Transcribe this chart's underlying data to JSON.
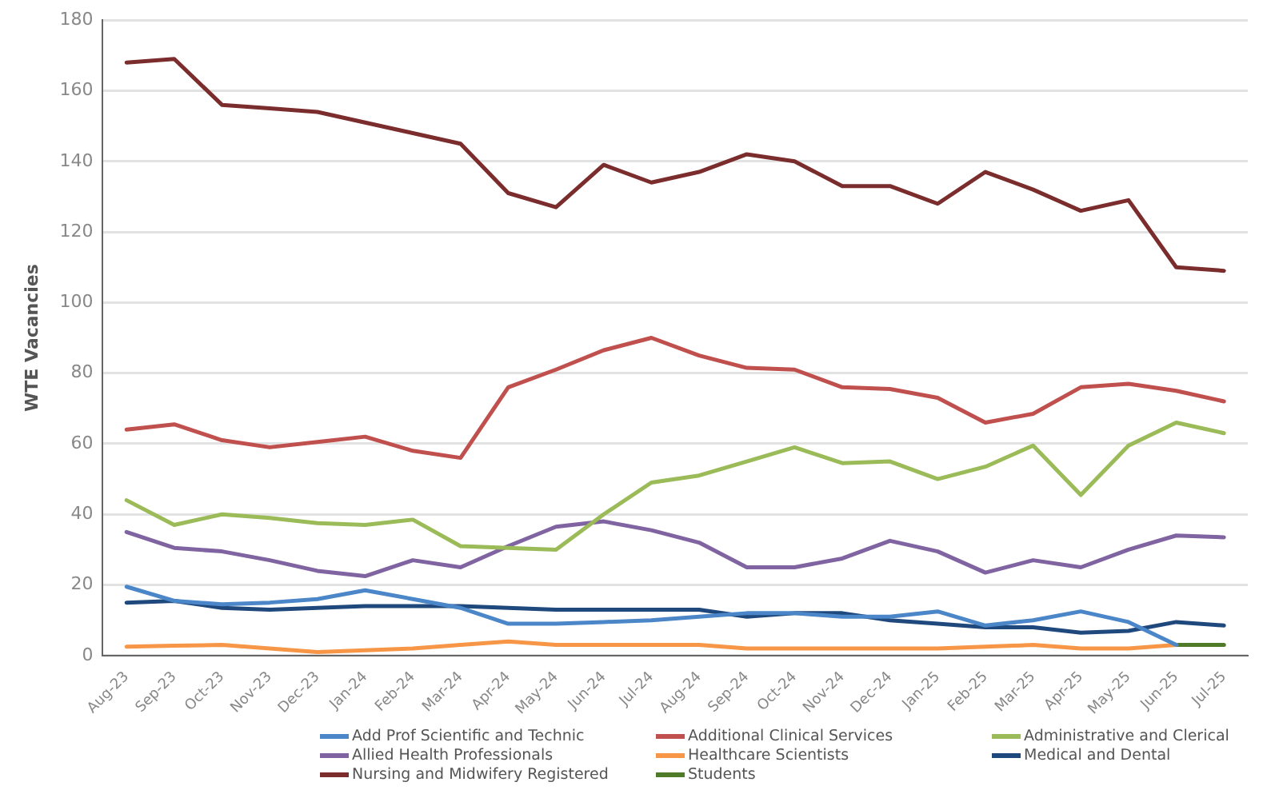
{
  "chart_data": {
    "type": "line",
    "ylabel": "WTE Vacancies",
    "categories": [
      "Aug-23",
      "Sep-23",
      "Oct-23",
      "Nov-23",
      "Dec-23",
      "Jan-24",
      "Feb-24",
      "Mar-24",
      "Apr-24",
      "May-24",
      "Jun-24",
      "Jul-24",
      "Aug-24",
      "Sep-24",
      "Oct-24",
      "Nov-24",
      "Dec-24",
      "Jan-25",
      "Feb-25",
      "Mar-25",
      "Apr-25",
      "May-25",
      "Jun-25",
      "Jul-25"
    ],
    "series": [
      {
        "name": "Add Prof Scientific and Technic",
        "color": "#4a86c8",
        "values": [
          19.5,
          15.5,
          14.5,
          15,
          16,
          18.5,
          16,
          13.5,
          9,
          9,
          9.5,
          10,
          11,
          12,
          12,
          11,
          11,
          12.5,
          8.5,
          10,
          12.5,
          9.5,
          3,
          null
        ]
      },
      {
        "name": "Additional Clinical Services",
        "color": "#c0504d",
        "values": [
          64,
          65.5,
          61,
          59,
          60.5,
          62,
          58,
          56,
          76,
          81,
          86.5,
          90,
          85,
          81.5,
          81,
          76,
          75.5,
          73,
          66,
          68.5,
          76,
          77,
          75,
          72
        ]
      },
      {
        "name": "Administrative and Clerical",
        "color": "#9bbb59",
        "values": [
          44,
          37,
          40,
          39,
          37.5,
          37,
          38.5,
          31,
          30.5,
          30,
          40,
          49,
          51,
          55,
          59,
          54.5,
          55,
          50,
          53.5,
          59.5,
          45.5,
          59.5,
          66,
          63
        ]
      },
      {
        "name": "Allied Health Professionals",
        "color": "#8064a2",
        "values": [
          35,
          30.5,
          29.5,
          27,
          24,
          22.5,
          27,
          25,
          31,
          36.5,
          38,
          35.5,
          32,
          25,
          25,
          27.5,
          32.5,
          29.5,
          23.5,
          27,
          25,
          30,
          34,
          33.5
        ]
      },
      {
        "name": "Healthcare Scientists",
        "color": "#f79646",
        "values": [
          2.5,
          2.8,
          3,
          2,
          1,
          1.5,
          2,
          3,
          4,
          3,
          3,
          3,
          3,
          2,
          2,
          2,
          2,
          2,
          2.5,
          3,
          2,
          2,
          3,
          null
        ]
      },
      {
        "name": "Medical and Dental",
        "color": "#1f497d",
        "values": [
          15,
          15.5,
          13.5,
          13,
          13.5,
          14,
          14,
          14,
          13.5,
          13,
          13,
          13,
          13,
          11,
          12,
          12,
          10,
          9,
          8,
          8,
          6.5,
          7,
          9.5,
          8.5
        ]
      },
      {
        "name": "Nursing and Midwifery Registered",
        "color": "#7b2c2c",
        "values": [
          168,
          169,
          156,
          155,
          154,
          151,
          148,
          145,
          131,
          127,
          139,
          134,
          137,
          142,
          140,
          133,
          133,
          128,
          137,
          132,
          126,
          129,
          110,
          109
        ]
      },
      {
        "name": "Students",
        "color": "#4f7a28",
        "values": [
          null,
          null,
          null,
          null,
          null,
          null,
          null,
          null,
          null,
          null,
          null,
          null,
          null,
          null,
          null,
          null,
          null,
          null,
          null,
          null,
          null,
          null,
          3,
          3
        ]
      }
    ],
    "ylim": [
      0,
      180
    ],
    "yticks": [
      0,
      20,
      40,
      60,
      80,
      100,
      120,
      140,
      160,
      180
    ],
    "grid": "y",
    "legend": "bottom",
    "marker": "none",
    "line_style": "solid"
  }
}
